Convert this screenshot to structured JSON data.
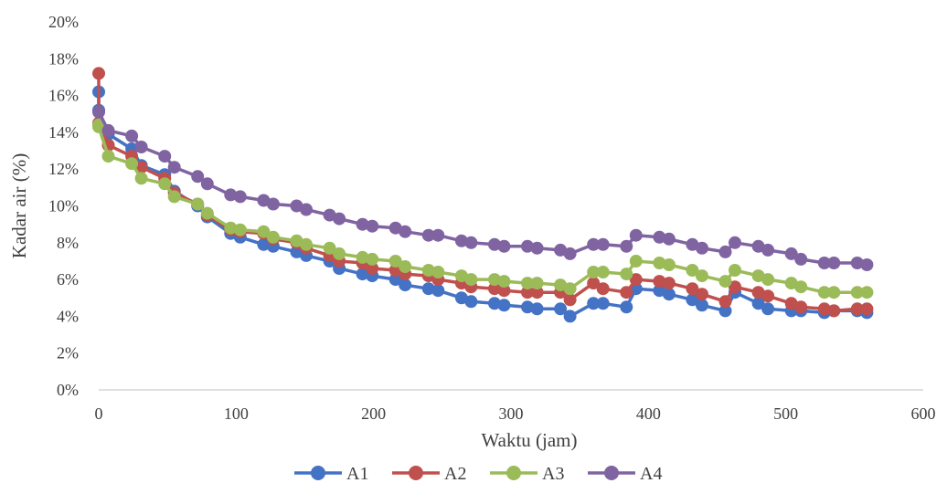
{
  "chart_data": {
    "type": "line",
    "xlabel": "Waktu (jam)",
    "ylabel": "Kadar air (%)",
    "xlim": [
      0,
      600
    ],
    "ylim": [
      0,
      20
    ],
    "xticks": [
      "0",
      "100",
      "200",
      "300",
      "400",
      "500",
      "600"
    ],
    "yticks": [
      "0%",
      "2%",
      "4%",
      "6%",
      "8%",
      "10%",
      "12%",
      "14%",
      "16%",
      "18%",
      "20%"
    ],
    "legend_position": "bottom",
    "grid": false,
    "series": [
      {
        "name": "A1",
        "color": "#4472C4",
        "points": [
          [
            0,
            16.2
          ],
          [
            0,
            15.2
          ],
          [
            7,
            13.9
          ],
          [
            24,
            13.1
          ],
          [
            31,
            12.2
          ],
          [
            48,
            11.7
          ],
          [
            55,
            10.8
          ],
          [
            72,
            10.0
          ],
          [
            79,
            9.4
          ],
          [
            96,
            8.5
          ],
          [
            103,
            8.3
          ],
          [
            120,
            7.9
          ],
          [
            127,
            7.8
          ],
          [
            144,
            7.5
          ],
          [
            151,
            7.3
          ],
          [
            168,
            7.0
          ],
          [
            175,
            6.6
          ],
          [
            192,
            6.3
          ],
          [
            199,
            6.2
          ],
          [
            216,
            6.0
          ],
          [
            223,
            5.7
          ],
          [
            240,
            5.5
          ],
          [
            247,
            5.4
          ],
          [
            264,
            5.0
          ],
          [
            271,
            4.8
          ],
          [
            288,
            4.7
          ],
          [
            295,
            4.6
          ],
          [
            312,
            4.5
          ],
          [
            319,
            4.4
          ],
          [
            336,
            4.4
          ],
          [
            343,
            4.0
          ],
          [
            360,
            4.7
          ],
          [
            367,
            4.7
          ],
          [
            384,
            4.5
          ],
          [
            391,
            5.5
          ],
          [
            408,
            5.4
          ],
          [
            415,
            5.2
          ],
          [
            432,
            4.9
          ],
          [
            439,
            4.6
          ],
          [
            456,
            4.3
          ],
          [
            463,
            5.3
          ],
          [
            480,
            4.7
          ],
          [
            487,
            4.4
          ],
          [
            504,
            4.3
          ],
          [
            511,
            4.3
          ],
          [
            528,
            4.2
          ],
          [
            535,
            4.3
          ],
          [
            552,
            4.3
          ],
          [
            559,
            4.2
          ]
        ]
      },
      {
        "name": "A2",
        "color": "#C0504D",
        "points": [
          [
            0,
            17.2
          ],
          [
            0,
            14.5
          ],
          [
            7,
            13.3
          ],
          [
            24,
            12.7
          ],
          [
            31,
            12.1
          ],
          [
            48,
            11.5
          ],
          [
            55,
            10.7
          ],
          [
            72,
            10.1
          ],
          [
            79,
            9.5
          ],
          [
            96,
            8.7
          ],
          [
            103,
            8.6
          ],
          [
            120,
            8.5
          ],
          [
            127,
            8.2
          ],
          [
            144,
            8.0
          ],
          [
            151,
            7.7
          ],
          [
            168,
            7.3
          ],
          [
            175,
            7.0
          ],
          [
            192,
            6.9
          ],
          [
            199,
            6.6
          ],
          [
            216,
            6.5
          ],
          [
            223,
            6.3
          ],
          [
            240,
            6.2
          ],
          [
            247,
            6.0
          ],
          [
            264,
            5.8
          ],
          [
            271,
            5.6
          ],
          [
            288,
            5.5
          ],
          [
            295,
            5.4
          ],
          [
            312,
            5.3
          ],
          [
            319,
            5.3
          ],
          [
            336,
            5.3
          ],
          [
            343,
            4.9
          ],
          [
            360,
            5.8
          ],
          [
            367,
            5.5
          ],
          [
            384,
            5.3
          ],
          [
            391,
            6.0
          ],
          [
            408,
            5.9
          ],
          [
            415,
            5.8
          ],
          [
            432,
            5.5
          ],
          [
            439,
            5.2
          ],
          [
            456,
            4.8
          ],
          [
            463,
            5.6
          ],
          [
            480,
            5.3
          ],
          [
            487,
            5.1
          ],
          [
            504,
            4.7
          ],
          [
            511,
            4.5
          ],
          [
            528,
            4.4
          ],
          [
            535,
            4.3
          ],
          [
            552,
            4.4
          ],
          [
            559,
            4.4
          ]
        ]
      },
      {
        "name": "A3",
        "color": "#9BBB59",
        "points": [
          [
            0,
            14.4
          ],
          [
            0,
            14.3
          ],
          [
            7,
            12.7
          ],
          [
            24,
            12.3
          ],
          [
            31,
            11.5
          ],
          [
            48,
            11.2
          ],
          [
            55,
            10.5
          ],
          [
            72,
            10.1
          ],
          [
            79,
            9.6
          ],
          [
            96,
            8.8
          ],
          [
            103,
            8.7
          ],
          [
            120,
            8.6
          ],
          [
            127,
            8.3
          ],
          [
            144,
            8.1
          ],
          [
            151,
            7.9
          ],
          [
            168,
            7.7
          ],
          [
            175,
            7.4
          ],
          [
            192,
            7.2
          ],
          [
            199,
            7.1
          ],
          [
            216,
            7.0
          ],
          [
            223,
            6.7
          ],
          [
            240,
            6.5
          ],
          [
            247,
            6.4
          ],
          [
            264,
            6.2
          ],
          [
            271,
            6.0
          ],
          [
            288,
            6.0
          ],
          [
            295,
            5.9
          ],
          [
            312,
            5.8
          ],
          [
            319,
            5.8
          ],
          [
            336,
            5.7
          ],
          [
            343,
            5.5
          ],
          [
            360,
            6.4
          ],
          [
            367,
            6.4
          ],
          [
            384,
            6.3
          ],
          [
            391,
            7.0
          ],
          [
            408,
            6.9
          ],
          [
            415,
            6.8
          ],
          [
            432,
            6.5
          ],
          [
            439,
            6.2
          ],
          [
            456,
            5.9
          ],
          [
            463,
            6.5
          ],
          [
            480,
            6.2
          ],
          [
            487,
            6.0
          ],
          [
            504,
            5.8
          ],
          [
            511,
            5.6
          ],
          [
            528,
            5.3
          ],
          [
            535,
            5.3
          ],
          [
            552,
            5.3
          ],
          [
            559,
            5.3
          ]
        ]
      },
      {
        "name": "A4",
        "color": "#8064A2",
        "points": [
          [
            0,
            15.1
          ],
          [
            7,
            14.1
          ],
          [
            24,
            13.8
          ],
          [
            31,
            13.2
          ],
          [
            48,
            12.7
          ],
          [
            55,
            12.1
          ],
          [
            72,
            11.6
          ],
          [
            79,
            11.2
          ],
          [
            96,
            10.6
          ],
          [
            103,
            10.5
          ],
          [
            120,
            10.3
          ],
          [
            127,
            10.1
          ],
          [
            144,
            10.0
          ],
          [
            151,
            9.8
          ],
          [
            168,
            9.5
          ],
          [
            175,
            9.3
          ],
          [
            192,
            9.0
          ],
          [
            199,
            8.9
          ],
          [
            216,
            8.8
          ],
          [
            223,
            8.6
          ],
          [
            240,
            8.4
          ],
          [
            247,
            8.4
          ],
          [
            264,
            8.1
          ],
          [
            271,
            8.0
          ],
          [
            288,
            7.9
          ],
          [
            295,
            7.8
          ],
          [
            312,
            7.8
          ],
          [
            319,
            7.7
          ],
          [
            336,
            7.6
          ],
          [
            343,
            7.4
          ],
          [
            360,
            7.9
          ],
          [
            367,
            7.9
          ],
          [
            384,
            7.8
          ],
          [
            391,
            8.4
          ],
          [
            408,
            8.3
          ],
          [
            415,
            8.2
          ],
          [
            432,
            7.9
          ],
          [
            439,
            7.7
          ],
          [
            456,
            7.5
          ],
          [
            463,
            8.0
          ],
          [
            480,
            7.8
          ],
          [
            487,
            7.6
          ],
          [
            504,
            7.4
          ],
          [
            511,
            7.1
          ],
          [
            528,
            6.9
          ],
          [
            535,
            6.9
          ],
          [
            552,
            6.9
          ],
          [
            559,
            6.8
          ]
        ]
      }
    ]
  }
}
